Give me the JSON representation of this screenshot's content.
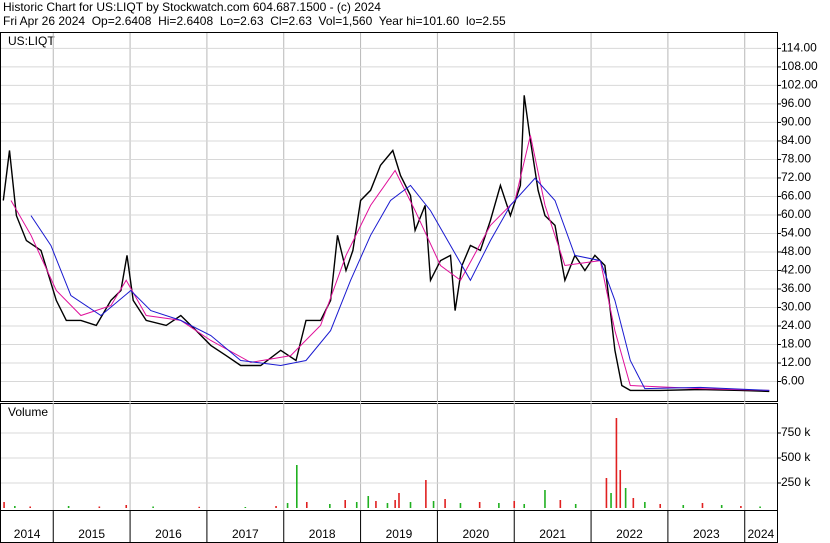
{
  "header": {
    "title": "Historic Chart for US:LIQT by Stockwatch.com 604.687.1500 - (c) 2024",
    "quote": "Fri Apr 26 2024  Op=2.6408  Hi=2.6408  Lo=2.63  Cl=2.63  Vol=1,560  Year hi=101.60  lo=2.55"
  },
  "chart_data": [
    {
      "type": "line",
      "title": "US:LIQT",
      "grid": true,
      "xlim": [
        2014.32,
        2024.42
      ],
      "xticks": [
        2014,
        2015,
        2016,
        2017,
        2018,
        2019,
        2020,
        2021,
        2022,
        2023,
        2024
      ],
      "ylim": [
        0,
        119
      ],
      "yticks": [
        {
          "value": 6,
          "label": "6.00"
        },
        {
          "value": 12,
          "label": "12.00"
        },
        {
          "value": 18,
          "label": "18.00"
        },
        {
          "value": 24,
          "label": "24.00"
        },
        {
          "value": 30,
          "label": "30.00"
        },
        {
          "value": 36,
          "label": "36.00"
        },
        {
          "value": 42,
          "label": "42.00"
        },
        {
          "value": 48,
          "label": "48.00"
        },
        {
          "value": 54,
          "label": "54.00"
        },
        {
          "value": 60,
          "label": "60.00"
        },
        {
          "value": 66,
          "label": "66.00"
        },
        {
          "value": 72,
          "label": "72.00"
        },
        {
          "value": 78,
          "label": "78.00"
        },
        {
          "value": 84,
          "label": "84.00"
        },
        {
          "value": 90,
          "label": "90.00"
        },
        {
          "value": 96,
          "label": "96.00"
        },
        {
          "value": 102,
          "label": "102.00"
        },
        {
          "value": 108,
          "label": "108.00"
        },
        {
          "value": 114,
          "label": "114.00"
        }
      ],
      "series": [
        {
          "color": "#000000",
          "x": [
            2014.35,
            2014.43,
            2014.52,
            2014.65,
            2014.84,
            2015.04,
            2015.17,
            2015.36,
            2015.56,
            2015.75,
            2015.88,
            2015.96,
            2016.04,
            2016.21,
            2016.47,
            2016.66,
            2016.86,
            2017.05,
            2017.25,
            2017.44,
            2017.7,
            2017.96,
            2018.16,
            2018.29,
            2018.48,
            2018.61,
            2018.7,
            2018.81,
            2018.9,
            2019.0,
            2019.13,
            2019.26,
            2019.42,
            2019.52,
            2019.65,
            2019.71,
            2019.84,
            2019.91,
            2020.04,
            2020.17,
            2020.23,
            2020.32,
            2020.43,
            2020.56,
            2020.69,
            2020.82,
            2020.95,
            2021.08,
            2021.13,
            2021.21,
            2021.31,
            2021.4,
            2021.53,
            2021.66,
            2021.79,
            2021.92,
            2022.05,
            2022.18,
            2022.25,
            2022.31,
            2022.4,
            2022.51,
            2022.9,
            2023.42,
            2023.94,
            2024.32
          ],
          "values": [
            64.7,
            80.9,
            59.8,
            51.7,
            48.5,
            32.3,
            25.8,
            25.8,
            24.2,
            32.3,
            35.5,
            46.9,
            32.3,
            25.8,
            24.2,
            27.4,
            22.5,
            17.7,
            14.4,
            11.2,
            11.2,
            16.1,
            12.8,
            25.8,
            25.8,
            32.3,
            53.4,
            42.0,
            48.5,
            64.7,
            68.0,
            76.1,
            80.9,
            72.8,
            66.3,
            55.0,
            63.1,
            38.8,
            45.2,
            46.9,
            29.0,
            43.6,
            50.1,
            48.5,
            58.2,
            69.6,
            59.8,
            69.6,
            98.8,
            84.2,
            68.0,
            59.8,
            56.6,
            38.8,
            46.9,
            42.0,
            46.9,
            43.6,
            29.0,
            16.1,
            4.7,
            3.1,
            3.1,
            3.4,
            3.1,
            2.8
          ]
        },
        {
          "color": "#e0109a",
          "x": [
            2014.45,
            2014.71,
            2015.04,
            2015.36,
            2015.75,
            2015.95,
            2016.21,
            2016.66,
            2017.05,
            2017.57,
            2018.09,
            2018.48,
            2018.81,
            2019.13,
            2019.45,
            2019.71,
            2020.04,
            2020.3,
            2020.69,
            2021.01,
            2021.21,
            2021.4,
            2021.66,
            2022.12,
            2022.31,
            2022.51,
            2023.42,
            2024.32
          ],
          "values": [
            64.7,
            53.4,
            35.5,
            27.4,
            30.6,
            38.8,
            27.4,
            25.8,
            19.3,
            12.2,
            14.4,
            24.2,
            46.9,
            63.1,
            74.4,
            61.4,
            43.6,
            38.8,
            56.6,
            64.7,
            85.8,
            63.1,
            43.6,
            45.2,
            22.5,
            4.7,
            3.7,
            3.1
          ]
        },
        {
          "color": "#1a1ad0",
          "x": [
            2014.71,
            2014.97,
            2015.23,
            2015.62,
            2016.01,
            2016.27,
            2016.66,
            2017.05,
            2017.44,
            2017.96,
            2018.29,
            2018.61,
            2018.87,
            2019.13,
            2019.39,
            2019.65,
            2019.91,
            2020.17,
            2020.43,
            2020.69,
            2020.95,
            2021.27,
            2021.53,
            2021.79,
            2022.12,
            2022.31,
            2022.51,
            2022.7,
            2023.42,
            2024.32
          ],
          "values": [
            59.8,
            50.1,
            33.9,
            27.4,
            35.5,
            29.0,
            25.8,
            20.9,
            12.8,
            11.2,
            12.8,
            22.5,
            38.8,
            53.4,
            64.7,
            69.6,
            61.4,
            50.1,
            38.8,
            51.7,
            63.1,
            71.9,
            64.7,
            46.9,
            45.2,
            32.3,
            12.8,
            3.7,
            4.1,
            3.1
          ]
        }
      ]
    },
    {
      "type": "bar",
      "title": "Volume",
      "grid": true,
      "xlim": [
        2014.32,
        2024.42
      ],
      "xticks": [
        2014,
        2015,
        2016,
        2017,
        2018,
        2019,
        2020,
        2021,
        2022,
        2023,
        2024
      ],
      "ylim": [
        0,
        1050000
      ],
      "yticks": [
        {
          "value": 250000,
          "label": "250 k"
        },
        {
          "value": 500000,
          "label": "500 k"
        },
        {
          "value": 750000,
          "label": "750 k"
        }
      ],
      "x": [
        2014.36,
        2014.5,
        2014.7,
        2015.2,
        2015.6,
        2015.95,
        2016.3,
        2016.9,
        2017.5,
        2017.9,
        2018.05,
        2018.17,
        2018.3,
        2018.6,
        2018.8,
        2018.95,
        2019.1,
        2019.2,
        2019.35,
        2019.45,
        2019.5,
        2019.65,
        2019.85,
        2019.95,
        2020.1,
        2020.3,
        2020.55,
        2020.8,
        2021.0,
        2021.13,
        2021.4,
        2021.6,
        2021.8,
        2022.2,
        2022.26,
        2022.33,
        2022.38,
        2022.45,
        2022.55,
        2022.7,
        2022.9,
        2023.2,
        2023.45,
        2023.7,
        2023.95,
        2024.2
      ],
      "values": [
        60000,
        20000,
        15000,
        20000,
        15000,
        30000,
        15000,
        12000,
        10000,
        20000,
        50000,
        430000,
        60000,
        40000,
        80000,
        60000,
        120000,
        70000,
        50000,
        80000,
        150000,
        60000,
        280000,
        70000,
        90000,
        50000,
        60000,
        50000,
        70000,
        40000,
        180000,
        80000,
        40000,
        300000,
        150000,
        900000,
        380000,
        200000,
        100000,
        60000,
        40000,
        30000,
        50000,
        30000,
        20000,
        15000
      ],
      "colors": [
        "#e02020",
        "#20b020",
        "#e02020",
        "#20b020",
        "#e02020",
        "#e02020",
        "#20b020",
        "#e02020",
        "#20b020",
        "#e02020",
        "#20b020",
        "#20b020",
        "#e02020",
        "#20b020",
        "#e02020",
        "#20b020",
        "#20b020",
        "#e02020",
        "#20b020",
        "#e02020",
        "#e02020",
        "#20b020",
        "#e02020",
        "#20b020",
        "#e02020",
        "#20b020",
        "#e02020",
        "#20b020",
        "#e02020",
        "#20b020",
        "#20b020",
        "#e02020",
        "#20b020",
        "#e02020",
        "#20b020",
        "#e02020",
        "#e02020",
        "#20b020",
        "#e02020",
        "#20b020",
        "#e02020",
        "#20b020",
        "#e02020",
        "#20b020",
        "#e02020",
        "#20b020"
      ]
    }
  ]
}
